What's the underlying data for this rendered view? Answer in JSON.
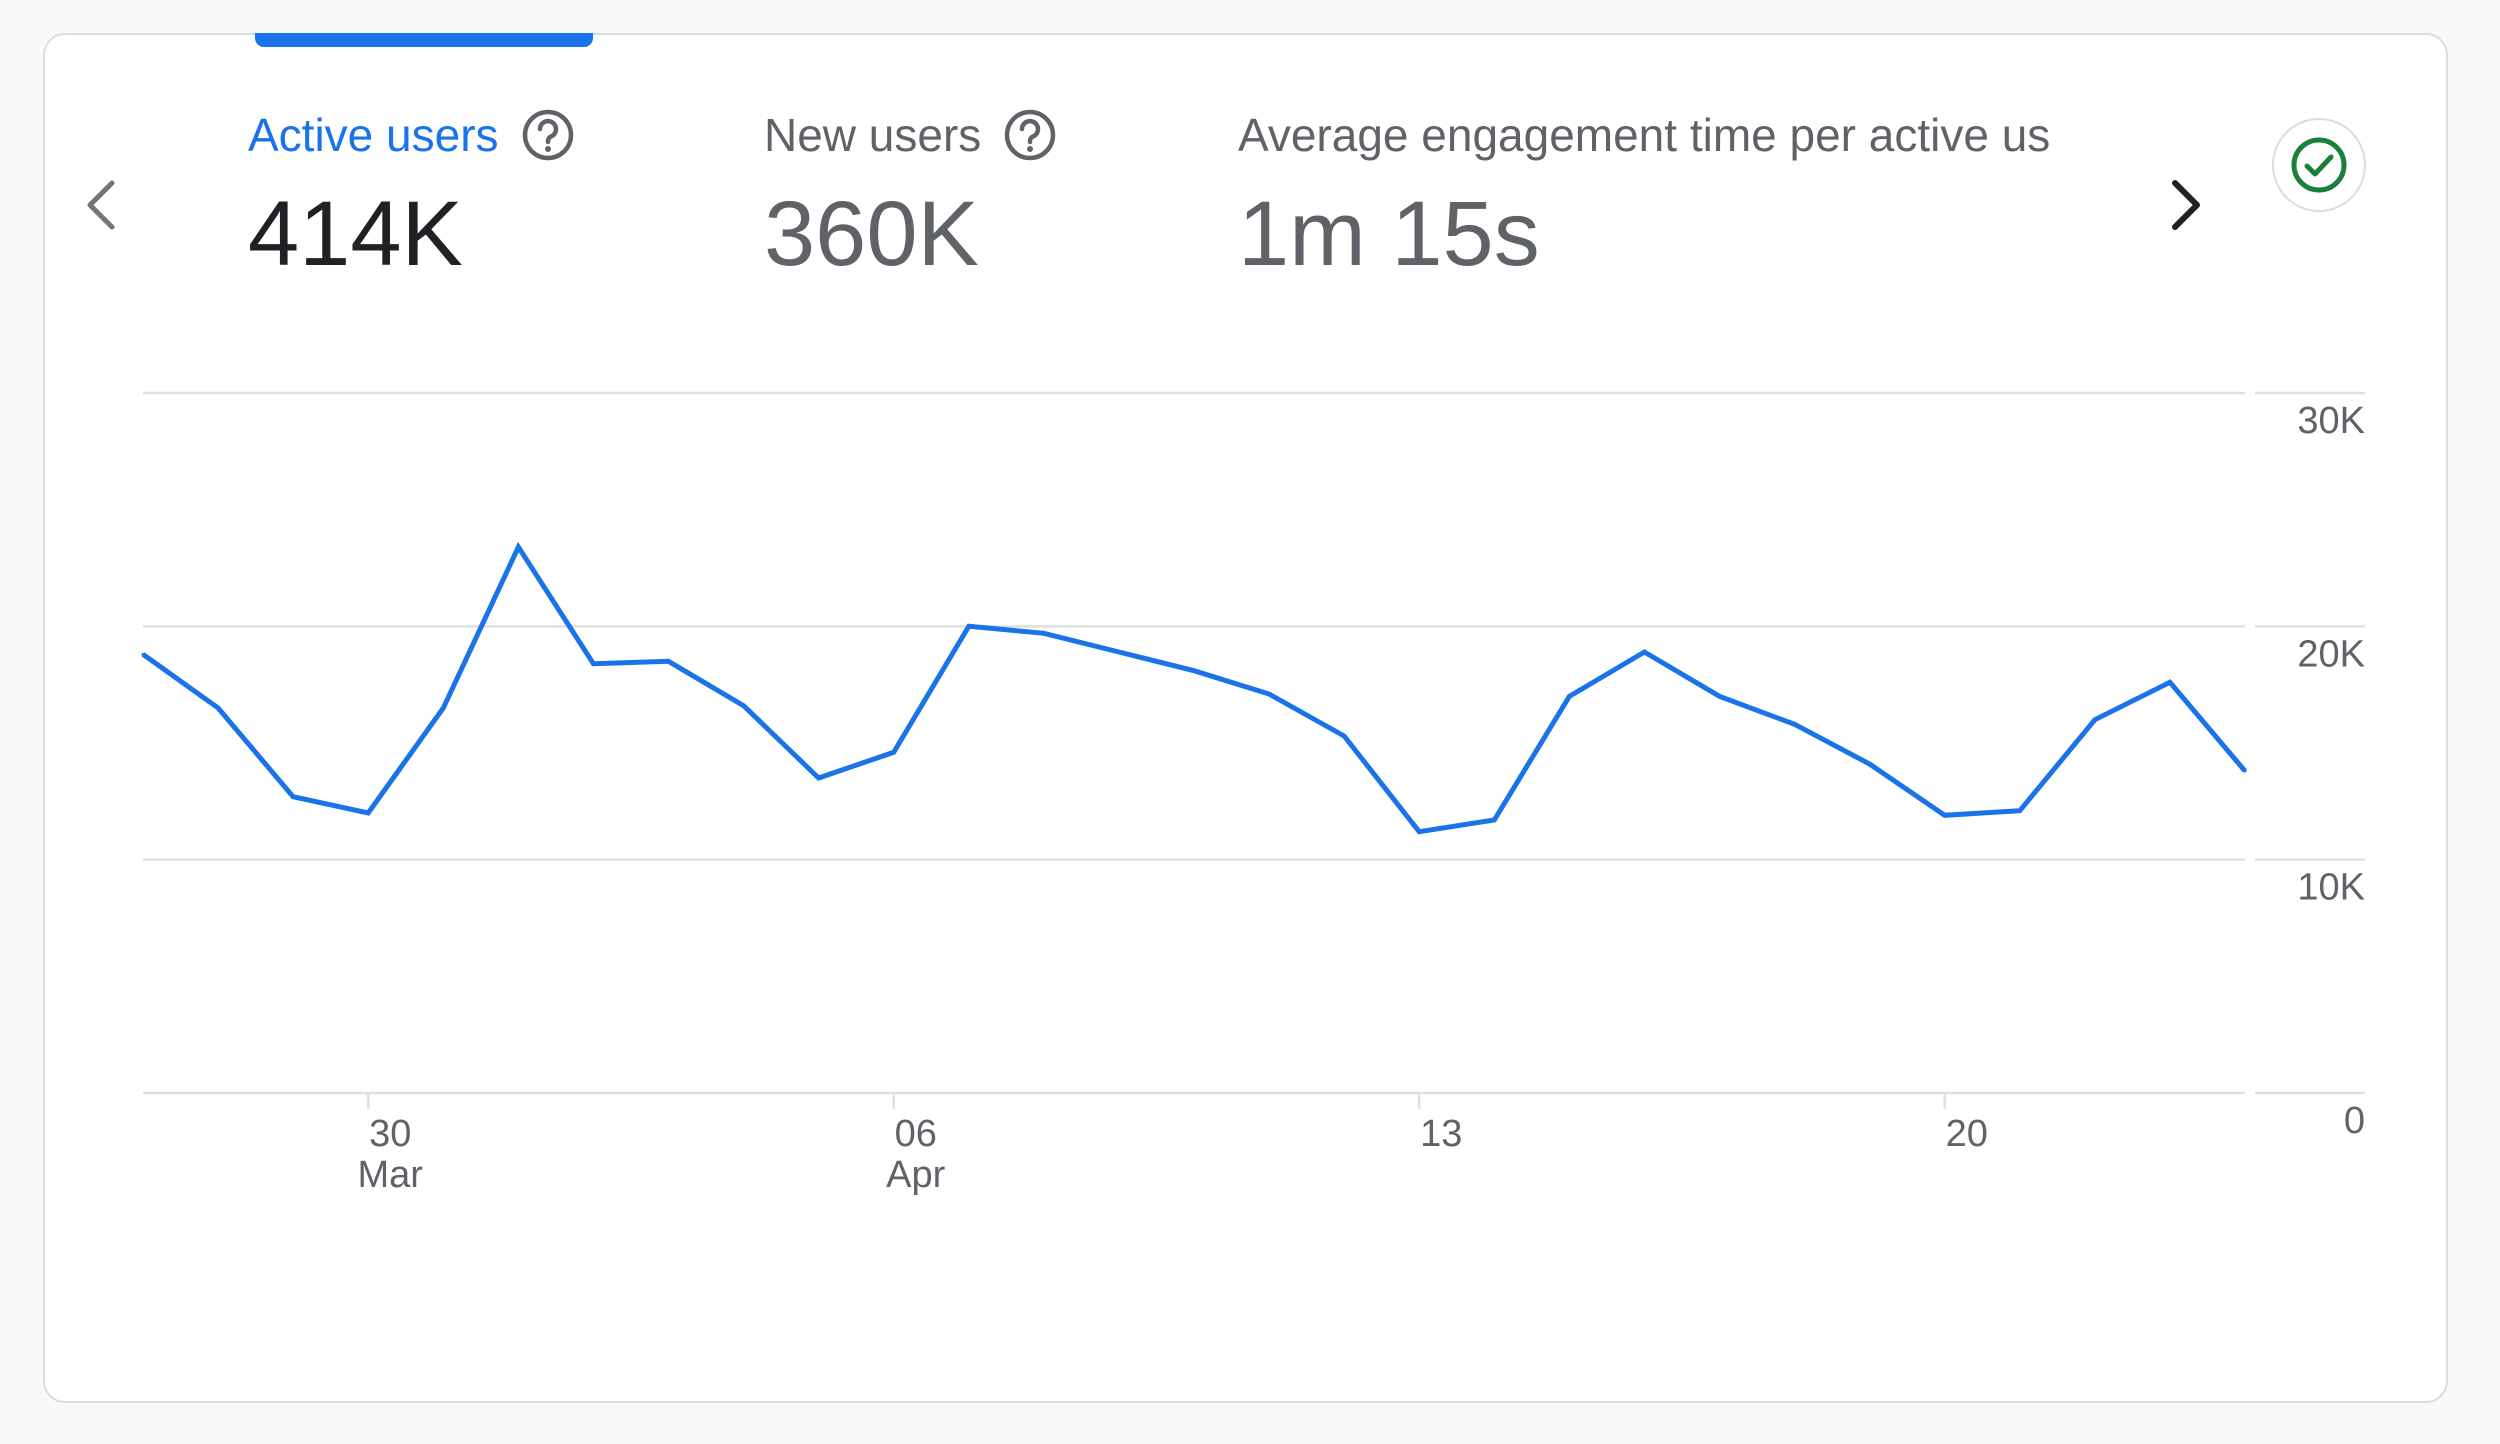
{
  "tabs": [
    {
      "label": "Active users",
      "value": "414K",
      "active": true,
      "help_icon": "help-circle-icon"
    },
    {
      "label": "New users",
      "value": "360K",
      "active": false,
      "help_icon": "help-circle-icon"
    },
    {
      "label": "Average engagement time per active us",
      "value": "1m 15s",
      "active": false
    }
  ],
  "nav": {
    "prev_icon": "chevron-left-icon",
    "next_icon": "chevron-right-icon"
  },
  "status": {
    "icon": "check-circle-icon",
    "color": "#188038"
  },
  "colors": {
    "accent": "#1a73e8",
    "line": "#1a73e8",
    "grid": "#e0e0e0",
    "text": "#5f6368"
  },
  "chart_data": {
    "type": "line",
    "x": [
      "Mar 27",
      "Mar 28",
      "Mar 29",
      "Mar 30",
      "Mar 31",
      "Apr 01",
      "Apr 02",
      "Apr 03",
      "Apr 04",
      "Apr 05",
      "Apr 06",
      "Apr 07",
      "Apr 08",
      "Apr 09",
      "Apr 10",
      "Apr 11",
      "Apr 12",
      "Apr 13",
      "Apr 14",
      "Apr 15",
      "Apr 16",
      "Apr 17",
      "Apr 18",
      "Apr 19",
      "Apr 20",
      "Apr 21",
      "Apr 22",
      "Apr 23",
      "Apr 24"
    ],
    "series": [
      {
        "values": [
          18800,
          16500,
          12700,
          12000,
          16500,
          23400,
          18400,
          18500,
          16600,
          13500,
          14600,
          20000,
          19700,
          18900,
          18100,
          17100,
          15300,
          11200,
          11700,
          17000,
          18900,
          17000,
          15800,
          14100,
          11900,
          12100,
          16000,
          17600,
          13800
        ]
      }
    ],
    "x_ticks": [
      {
        "day": "30",
        "month": "Mar",
        "index": 3
      },
      {
        "day": "06",
        "month": "Apr",
        "index": 10
      },
      {
        "day": "13",
        "month": "",
        "index": 17
      },
      {
        "day": "20",
        "month": "",
        "index": 24
      }
    ],
    "y_ticks": [
      {
        "label": "30K",
        "value": 30000
      },
      {
        "label": "20K",
        "value": 20000
      },
      {
        "label": "10K",
        "value": 10000
      },
      {
        "label": "0",
        "value": 0
      }
    ],
    "ylim": [
      0,
      30000
    ],
    "grid": true,
    "xlabel": "",
    "ylabel": ""
  }
}
